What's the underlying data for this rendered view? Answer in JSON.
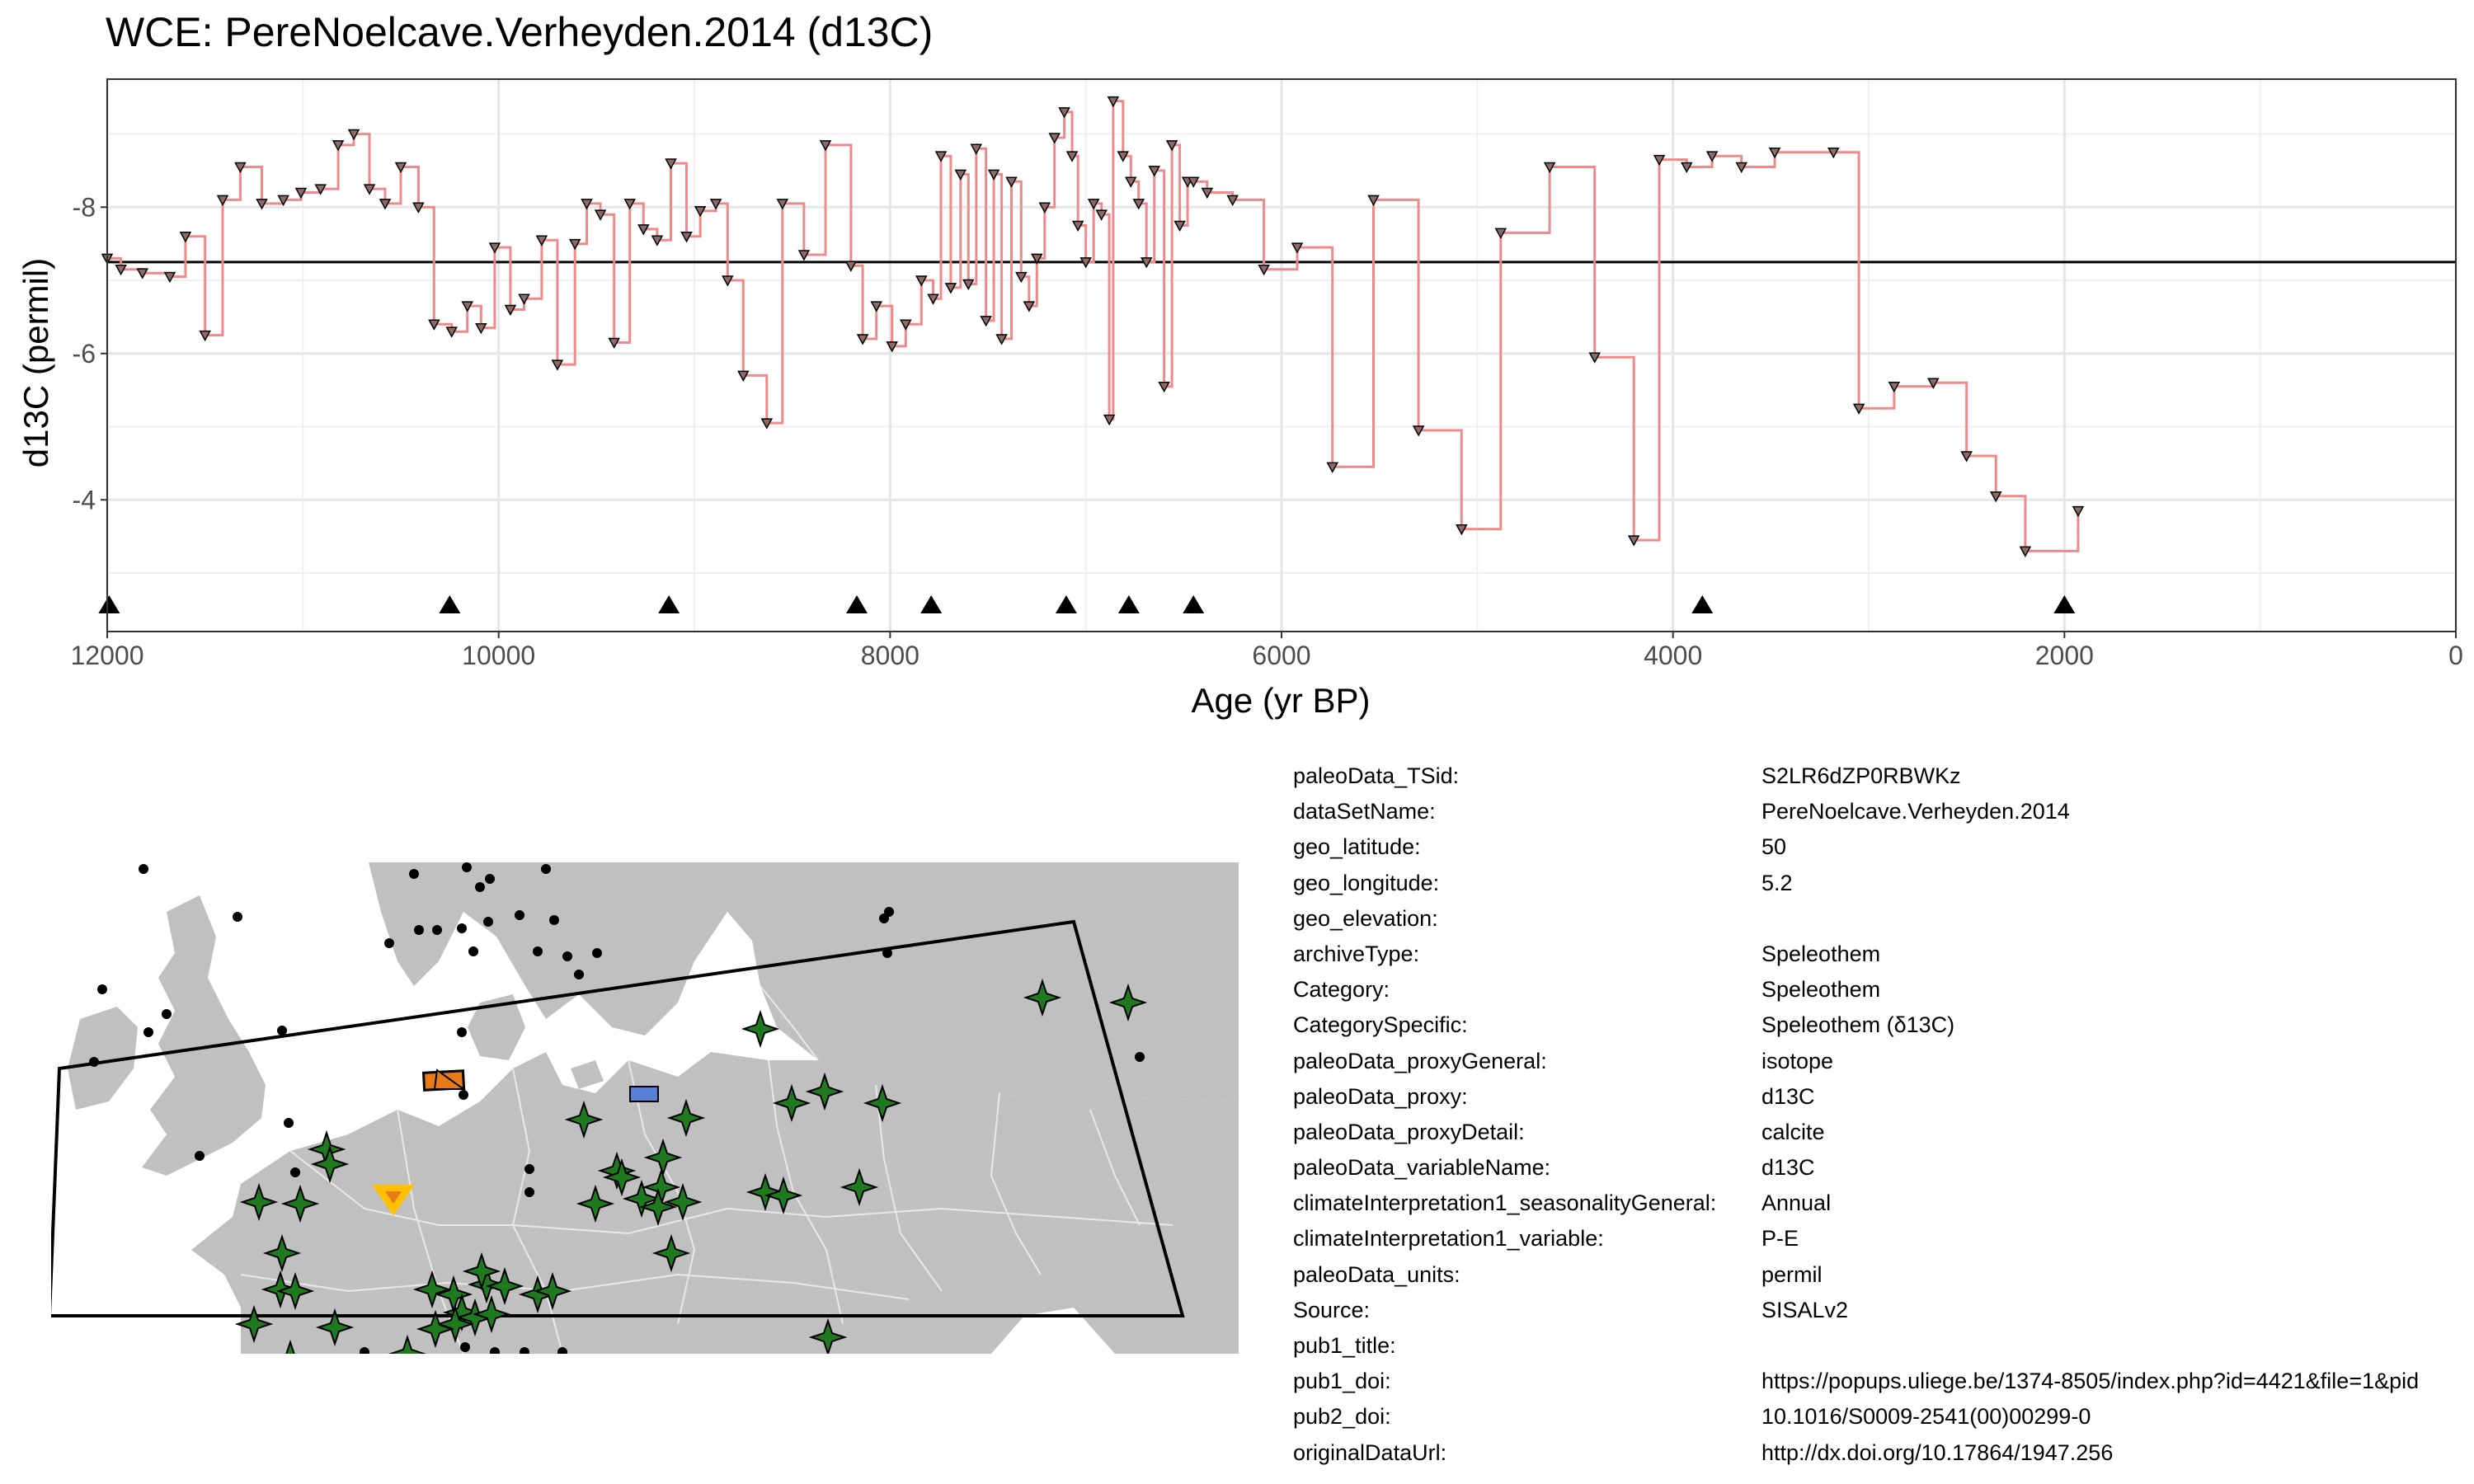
{
  "chart_data": {
    "type": "line",
    "title": "WCE: PereNoelcave.Verheyden.2014 (d13C)",
    "xlabel": "Age (yr BP)",
    "ylabel": "d13C (permil)",
    "xlim": [
      12000,
      0
    ],
    "ylim": [
      -9.75,
      -2.2
    ],
    "x_ticks": [
      "12000",
      "10000",
      "8000",
      "6000",
      "4000",
      "2000",
      "0"
    ],
    "y_ticks": [
      "-8",
      "-6",
      "-4"
    ],
    "grid": true,
    "step": true,
    "reference_line": -7.25,
    "series": [
      {
        "x": [
          12000,
          11930,
          11820,
          11680,
          11600,
          11500,
          11410,
          11320,
          11210,
          11100,
          11010,
          10910,
          10820,
          10740,
          10660,
          10580,
          10500,
          10410,
          10330,
          10240,
          10160,
          10090,
          10020,
          9940,
          9870,
          9780,
          9700,
          9610,
          9550,
          9480,
          9410,
          9330,
          9260,
          9190,
          9120,
          9040,
          8970,
          8890,
          8830,
          8750,
          8630,
          8550,
          8440,
          8330,
          8200,
          8140,
          8070,
          7990,
          7920,
          7840,
          7780,
          7740,
          7690,
          7640,
          7600,
          7560,
          7510,
          7470,
          7430,
          7380,
          7330,
          7290,
          7250,
          7210,
          7160,
          7110,
          7070,
          7040,
          7000,
          6960,
          6920,
          6880,
          6860,
          6810,
          6770,
          6730,
          6690,
          6650,
          6600,
          6560,
          6520,
          6480,
          6450,
          6380,
          6250,
          6090,
          5920,
          5740,
          5530,
          5300,
          5080,
          4880,
          4630,
          4400,
          4200,
          4070,
          3930,
          3800,
          3650,
          3480,
          3180,
          3050,
          2870,
          2670,
          2500,
          2350,
          2200,
          1930
        ],
        "y": [
          -7.3,
          -7.15,
          -7.1,
          -7.05,
          -7.6,
          -6.25,
          -8.1,
          -8.55,
          -8.05,
          -8.1,
          -8.2,
          -8.25,
          -8.85,
          -9.0,
          -8.25,
          -8.05,
          -8.55,
          -8.0,
          -6.4,
          -6.3,
          -6.65,
          -6.35,
          -7.45,
          -6.6,
          -6.75,
          -7.55,
          -5.85,
          -7.5,
          -8.05,
          -7.9,
          -6.15,
          -8.05,
          -7.7,
          -7.55,
          -8.6,
          -7.6,
          -7.95,
          -8.05,
          -7.0,
          -5.7,
          -5.05,
          -8.05,
          -7.35,
          -8.85,
          -7.2,
          -6.2,
          -6.65,
          -6.1,
          -6.4,
          -7.0,
          -6.75,
          -8.7,
          -6.9,
          -8.45,
          -6.95,
          -8.8,
          -6.45,
          -8.45,
          -6.2,
          -8.35,
          -7.05,
          -6.65,
          -7.3,
          -8.0,
          -8.95,
          -9.3,
          -8.7,
          -7.75,
          -7.25,
          -8.05,
          -7.9,
          -5.1,
          -9.45,
          -8.7,
          -8.35,
          -8.05,
          -7.25,
          -8.5,
          -5.55,
          -8.85,
          -7.75,
          -8.35,
          -8.35,
          -8.2,
          -8.1,
          -7.15,
          -7.45,
          -4.45,
          -8.1,
          -4.95,
          -3.6,
          -7.65,
          -8.55,
          -5.95,
          -3.45,
          -8.65,
          -8.55,
          -8.7,
          -8.55,
          -8.75,
          -8.75,
          -5.25,
          -5.55,
          -5.6,
          -4.6,
          -4.05,
          -3.3,
          -3.85
        ]
      }
    ],
    "chron_markers_x": [
      11990,
      10250,
      9130,
      8170,
      7790,
      7100,
      6780,
      6450,
      3850,
      2000
    ]
  },
  "map": {
    "colors": {
      "land": "#c0c0c0",
      "border": "#e8e8e8",
      "site": "#1f7a1f",
      "target": "#ffc000",
      "orange": "#e87a1a",
      "blue": "#5a7fd6"
    }
  },
  "metadata": [
    {
      "key": "paleoData_TSid:",
      "value": "S2LR6dZP0RBWKz"
    },
    {
      "key": "dataSetName:",
      "value": "PereNoelcave.Verheyden.2014"
    },
    {
      "key": "geo_latitude:",
      "value": "50"
    },
    {
      "key": "geo_longitude:",
      "value": "5.2"
    },
    {
      "key": "geo_elevation:",
      "value": ""
    },
    {
      "key": "archiveType:",
      "value": "Speleothem"
    },
    {
      "key": "Category:",
      "value": "Speleothem"
    },
    {
      "key": "CategorySpecific:",
      "value": "Speleothem (δ13C)"
    },
    {
      "key": "paleoData_proxyGeneral:",
      "value": "isotope"
    },
    {
      "key": "paleoData_proxy:",
      "value": "d13C"
    },
    {
      "key": "paleoData_proxyDetail:",
      "value": "calcite"
    },
    {
      "key": "paleoData_variableName:",
      "value": "d13C"
    },
    {
      "key": "climateInterpretation1_seasonalityGeneral:",
      "value": "Annual"
    },
    {
      "key": "climateInterpretation1_variable:",
      "value": "P-E"
    },
    {
      "key": "paleoData_units:",
      "value": "permil"
    },
    {
      "key": "Source:",
      "value": "SISALv2"
    },
    {
      "key": "pub1_title:",
      "value": ""
    },
    {
      "key": "pub1_doi:",
      "value": "https://popups.uliege.be/1374-8505/index.php?id=4421&file=1&pid"
    },
    {
      "key": "pub2_doi:",
      "value": "10.1016/S0009-2541(00)00299-0"
    },
    {
      "key": "originalDataUrl:",
      "value": "http://dx.doi.org/10.17864/1947.256"
    }
  ]
}
